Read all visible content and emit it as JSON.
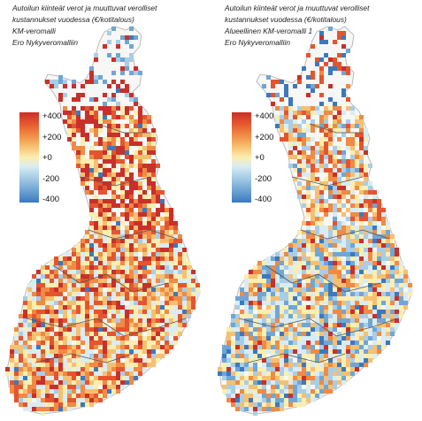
{
  "panels": [
    {
      "caption": [
        "Autoilun kiinteät verot ja muuttuvat verolliset",
        "kustannukset vuodessa (€/kotitalous)",
        "KM-veromalli",
        "Ero Nykyveromalliin"
      ],
      "legend": [
        "+400",
        "+200",
        "+0",
        "-200",
        "-400"
      ],
      "color_bias": 0.35
    },
    {
      "caption": [
        "Autoilun kiinteät verot ja muuttuvat verolliset",
        "kustannukset vuodessa (€/kotitalous)",
        "Alueellinen KM-veromalli 1",
        "Ero Nykyveromalliin"
      ],
      "legend": [
        "+400",
        "+200",
        "+0",
        "-200",
        "-400"
      ],
      "color_bias": -0.25
    }
  ],
  "colors": {
    "strong_positive": "#c8302a",
    "positive": "#f08a44",
    "neutral": "#fbeeb0",
    "negative": "#6fa6d4",
    "strong_negative": "#3d78bd",
    "boundary": "#555555",
    "outline": "#bbbbbb"
  }
}
